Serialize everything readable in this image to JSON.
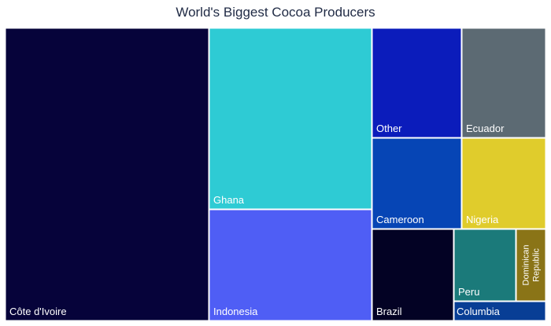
{
  "chart_data": {
    "type": "treemap",
    "title": "World's Biggest Cocoa Producers",
    "items": [
      {
        "label": "Côte d'Ivoire",
        "value": 2180,
        "color": "#06033a"
      },
      {
        "label": "Ghana",
        "value": 800,
        "color": "#2ecbd4"
      },
      {
        "label": "Indonesia",
        "value": 659,
        "color": "#4f5ef5"
      },
      {
        "label": "Other",
        "value": 234,
        "color": "#0b1cbb"
      },
      {
        "label": "Ecuador",
        "value": 235,
        "color": "#5c6a73"
      },
      {
        "label": "Cameroon",
        "value": 290,
        "color": "#0645b5"
      },
      {
        "label": "Nigeria",
        "value": 280,
        "color": "#e0cc2c"
      },
      {
        "label": "Brazil",
        "value": 204,
        "color": "#030224"
      },
      {
        "label": "Peru",
        "value": 140,
        "color": "#1b7a7a"
      },
      {
        "label": "Dominican Republic",
        "value": 75,
        "color": "#8a7417"
      },
      {
        "label": "Columbia",
        "value": 40,
        "color": "#083e95"
      }
    ]
  }
}
